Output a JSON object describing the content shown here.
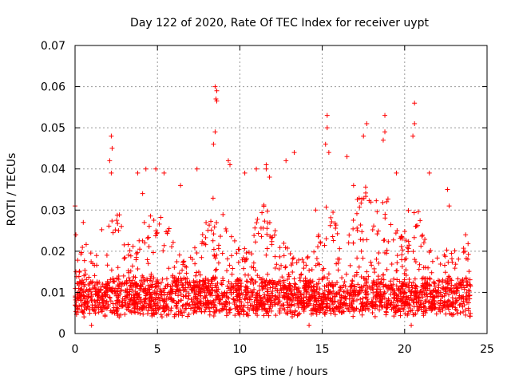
{
  "chart_data": {
    "type": "scatter",
    "title": "Day 122 of 2020, Rate Of TEC Index for receiver uypt",
    "xlabel": "GPS time / hours",
    "ylabel": "ROTI / TECUs",
    "xlim": [
      0,
      25
    ],
    "ylim": [
      0,
      0.07
    ],
    "xticks": [
      0,
      5,
      10,
      15,
      20,
      25
    ],
    "xtick_labels": [
      "0",
      "5",
      "10",
      "15",
      "20",
      "25"
    ],
    "yticks": [
      0,
      0.01,
      0.02,
      0.03,
      0.04,
      0.05,
      0.06,
      0.07
    ],
    "ytick_labels": [
      "0",
      "0.01",
      "0.02",
      "0.03",
      "0.04",
      "0.05",
      "0.06",
      "0.07"
    ],
    "grid": true,
    "marker": "+",
    "color": "#ff0000",
    "series": [
      {
        "name": "ROTI",
        "x_range": [
          0,
          24
        ],
        "typical_band": [
          0.004,
          0.022
        ],
        "notable_points": [
          {
            "x": 0.0,
            "y": 0.031
          },
          {
            "x": 0.05,
            "y": 0.024
          },
          {
            "x": 0.5,
            "y": 0.027
          },
          {
            "x": 2.2,
            "y": 0.048
          },
          {
            "x": 2.25,
            "y": 0.045
          },
          {
            "x": 2.1,
            "y": 0.042
          },
          {
            "x": 2.2,
            "y": 0.039
          },
          {
            "x": 3.8,
            "y": 0.039
          },
          {
            "x": 4.3,
            "y": 0.04
          },
          {
            "x": 4.9,
            "y": 0.04
          },
          {
            "x": 5.4,
            "y": 0.039
          },
          {
            "x": 7.4,
            "y": 0.04
          },
          {
            "x": 8.5,
            "y": 0.06
          },
          {
            "x": 8.6,
            "y": 0.059
          },
          {
            "x": 8.55,
            "y": 0.057
          },
          {
            "x": 8.6,
            "y": 0.0565
          },
          {
            "x": 8.5,
            "y": 0.049
          },
          {
            "x": 8.4,
            "y": 0.046
          },
          {
            "x": 9.3,
            "y": 0.042
          },
          {
            "x": 11.0,
            "y": 0.04
          },
          {
            "x": 11.6,
            "y": 0.041
          },
          {
            "x": 11.6,
            "y": 0.04
          },
          {
            "x": 11.8,
            "y": 0.038
          },
          {
            "x": 12.8,
            "y": 0.042
          },
          {
            "x": 13.3,
            "y": 0.044
          },
          {
            "x": 15.3,
            "y": 0.053
          },
          {
            "x": 15.3,
            "y": 0.05
          },
          {
            "x": 15.2,
            "y": 0.046
          },
          {
            "x": 15.4,
            "y": 0.044
          },
          {
            "x": 16.5,
            "y": 0.043
          },
          {
            "x": 17.5,
            "y": 0.048
          },
          {
            "x": 17.7,
            "y": 0.051
          },
          {
            "x": 18.8,
            "y": 0.053
          },
          {
            "x": 18.8,
            "y": 0.049
          },
          {
            "x": 18.7,
            "y": 0.047
          },
          {
            "x": 20.6,
            "y": 0.056
          },
          {
            "x": 20.6,
            "y": 0.051
          },
          {
            "x": 20.5,
            "y": 0.048
          },
          {
            "x": 21.5,
            "y": 0.039
          },
          {
            "x": 22.6,
            "y": 0.035
          },
          {
            "x": 22.7,
            "y": 0.031
          },
          {
            "x": 9.4,
            "y": 0.041
          },
          {
            "x": 4.1,
            "y": 0.034
          },
          {
            "x": 6.4,
            "y": 0.036
          },
          {
            "x": 10.3,
            "y": 0.039
          },
          {
            "x": 14.6,
            "y": 0.03
          },
          {
            "x": 16.9,
            "y": 0.036
          },
          {
            "x": 19.5,
            "y": 0.039
          },
          {
            "x": 23.7,
            "y": 0.024
          },
          {
            "x": 14.2,
            "y": 0.002
          },
          {
            "x": 20.4,
            "y": 0.002
          },
          {
            "x": 1.0,
            "y": 0.002
          }
        ]
      }
    ]
  }
}
